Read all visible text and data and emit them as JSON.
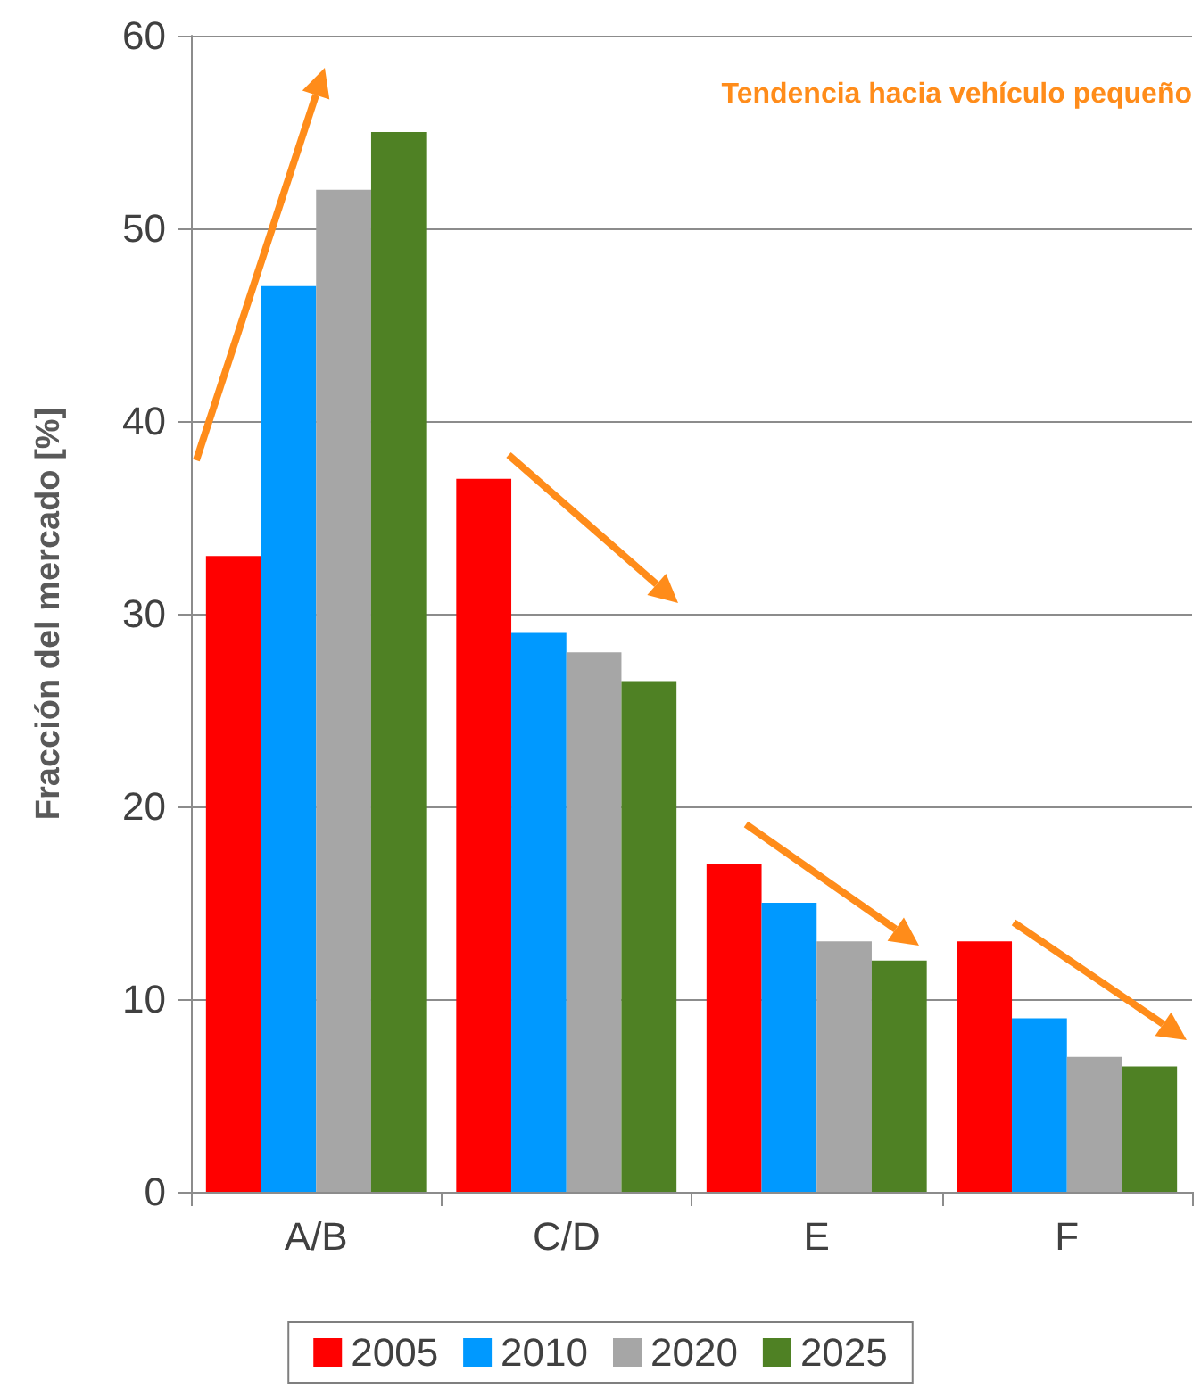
{
  "chart_data": {
    "type": "bar",
    "ylabel": "Fracción del mercado [%]",
    "annotations": [
      "Tendencia hacia vehículo pequeño"
    ],
    "categories": [
      "A/B",
      "C/D",
      "E",
      "F"
    ],
    "series": [
      {
        "name": "2005",
        "color": "#ff0000",
        "values": [
          33,
          37,
          17,
          13
        ]
      },
      {
        "name": "2010",
        "color": "#0099ff",
        "values": [
          47,
          29,
          15,
          9
        ]
      },
      {
        "name": "2020",
        "color": "#a6a6a6",
        "values": [
          52,
          28,
          13,
          7
        ]
      },
      {
        "name": "2025",
        "color": "#4f8124",
        "values": [
          55,
          26.5,
          12,
          6.5
        ]
      }
    ],
    "ylim": [
      0,
      60
    ],
    "yticks": [
      0,
      10,
      20,
      30,
      40,
      50,
      60
    ],
    "grid": "y",
    "legend": "bottom"
  }
}
